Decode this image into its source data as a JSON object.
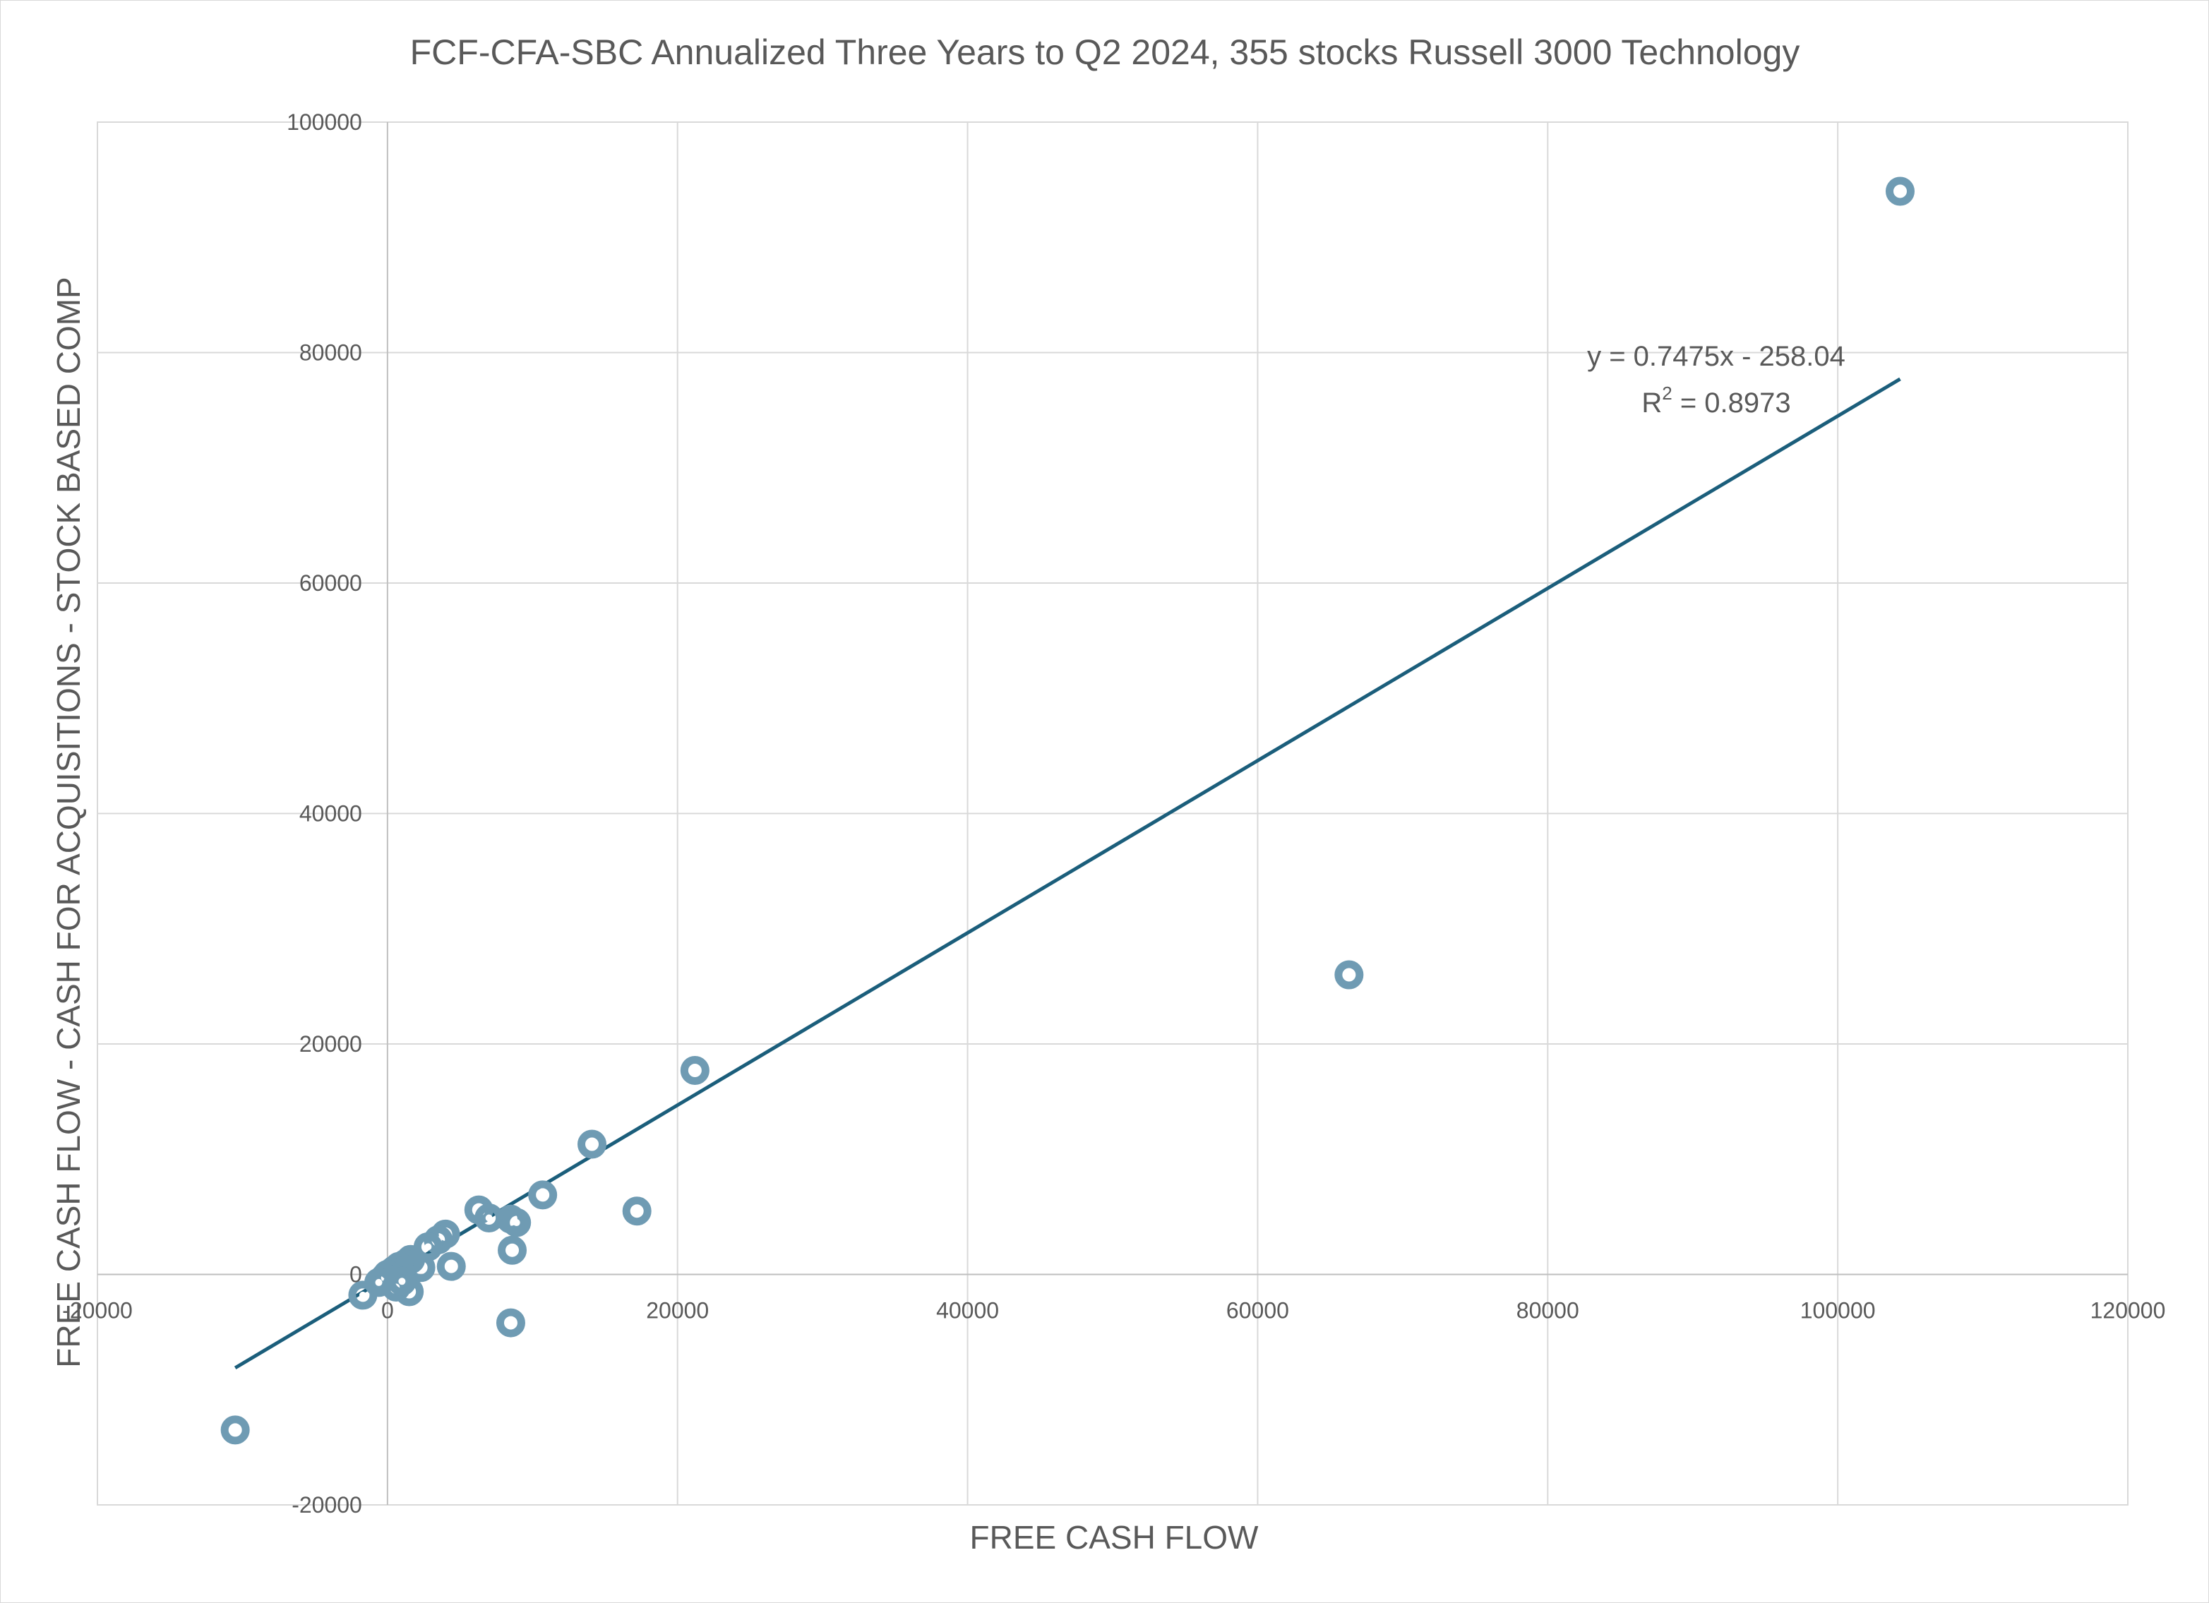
{
  "chart_data": {
    "type": "scatter",
    "title": "FCF-CFA-SBC Annualized Three Years to Q2 2024, 355 stocks Russell 3000 Technology",
    "xlabel": "FREE CASH FLOW",
    "ylabel": "FREE CASH FLOW - CASH FOR ACQUISITIONS - STOCK BASED COMP",
    "xlim": [
      -20000,
      120000
    ],
    "ylim": [
      -20000,
      100000
    ],
    "xticks": [
      -20000,
      0,
      20000,
      40000,
      60000,
      80000,
      100000,
      120000
    ],
    "yticks": [
      -20000,
      0,
      20000,
      40000,
      60000,
      80000,
      100000
    ],
    "x_tick_labels": [
      "-20000",
      "0",
      "20000",
      "40000",
      "60000",
      "80000",
      "100000",
      "120000"
    ],
    "y_tick_labels": [
      "-20000",
      "0",
      "20000",
      "40000",
      "60000",
      "80000",
      "100000"
    ],
    "grid": true,
    "marker_color": "#6f9bb3",
    "trendline_color": "#1b5e7b",
    "points": [
      {
        "x": 104300,
        "y": 94000
      },
      {
        "x": 66300,
        "y": 26000
      },
      {
        "x": 21200,
        "y": 17700
      },
      {
        "x": 14100,
        "y": 11300
      },
      {
        "x": 17200,
        "y": 5500
      },
      {
        "x": 10700,
        "y": 6900
      },
      {
        "x": 6300,
        "y": 5600
      },
      {
        "x": 7000,
        "y": 4900
      },
      {
        "x": 8500,
        "y": 4800
      },
      {
        "x": 8900,
        "y": 4500
      },
      {
        "x": 8600,
        "y": 2100
      },
      {
        "x": 8500,
        "y": -4200
      },
      {
        "x": 4000,
        "y": 3500
      },
      {
        "x": 3500,
        "y": 3000
      },
      {
        "x": 2800,
        "y": 2400
      },
      {
        "x": 4400,
        "y": 700
      },
      {
        "x": 2300,
        "y": 600
      },
      {
        "x": 1600,
        "y": 1300
      },
      {
        "x": 1500,
        "y": -1500
      },
      {
        "x": 1200,
        "y": 900
      },
      {
        "x": 800,
        "y": 700
      },
      {
        "x": 500,
        "y": 400
      },
      {
        "x": 300,
        "y": 200
      },
      {
        "x": 100,
        "y": -100
      },
      {
        "x": 0,
        "y": 0
      },
      {
        "x": -200,
        "y": -300
      },
      {
        "x": -600,
        "y": -700
      },
      {
        "x": -1700,
        "y": -1800
      },
      {
        "x": 600,
        "y": -1100
      },
      {
        "x": 1000,
        "y": -600
      },
      {
        "x": -10500,
        "y": -13500
      }
    ],
    "trendline": {
      "slope": 0.7475,
      "intercept": -258.04,
      "x_range": [
        -10500,
        104300
      ],
      "equation": "y = 0.7475x - 258.04",
      "r2_label": "R",
      "r2_sup": "2",
      "r2_value": " = 0.8973"
    }
  }
}
